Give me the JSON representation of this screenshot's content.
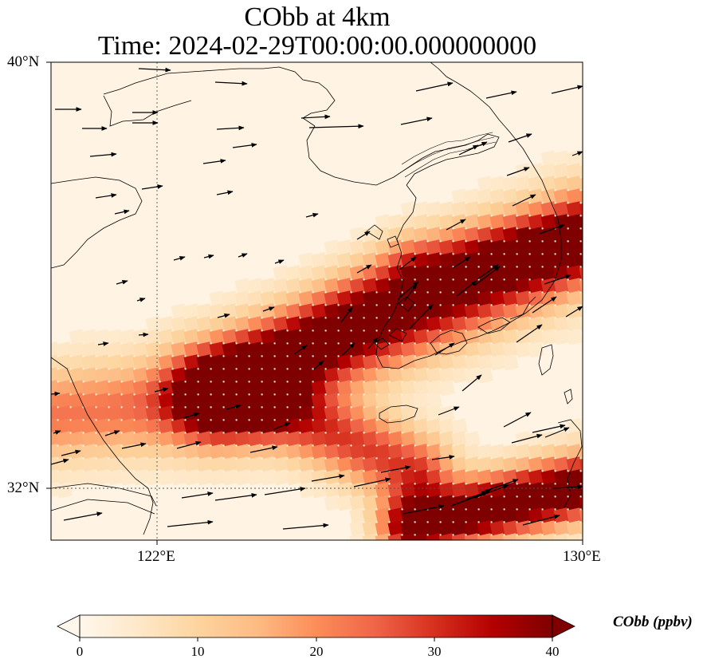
{
  "figure": {
    "title_line1": "CObb at 4km",
    "title_line2": "Time: 2024-02-29T00:00:00.000000000"
  },
  "map": {
    "lat_labels": [
      "40°N",
      "32°N"
    ],
    "lon_labels": [
      "122°E",
      "130°E"
    ],
    "extent": {
      "lon_min": 120,
      "lon_max": 130,
      "lat_min": 31,
      "lat_max": 40
    },
    "gridlines": {
      "lon": 122,
      "lat": 32
    }
  },
  "colorbar": {
    "label": "CObb (ppbv)",
    "ticks": [
      "0",
      "10",
      "20",
      "30",
      "40"
    ],
    "range": [
      0,
      40
    ],
    "colormap": "OrRd",
    "extend": "both"
  },
  "colors": {
    "low": "#fff7ec",
    "mid": "#fdbb84",
    "high": "#d7301f",
    "max": "#7f0000"
  }
}
